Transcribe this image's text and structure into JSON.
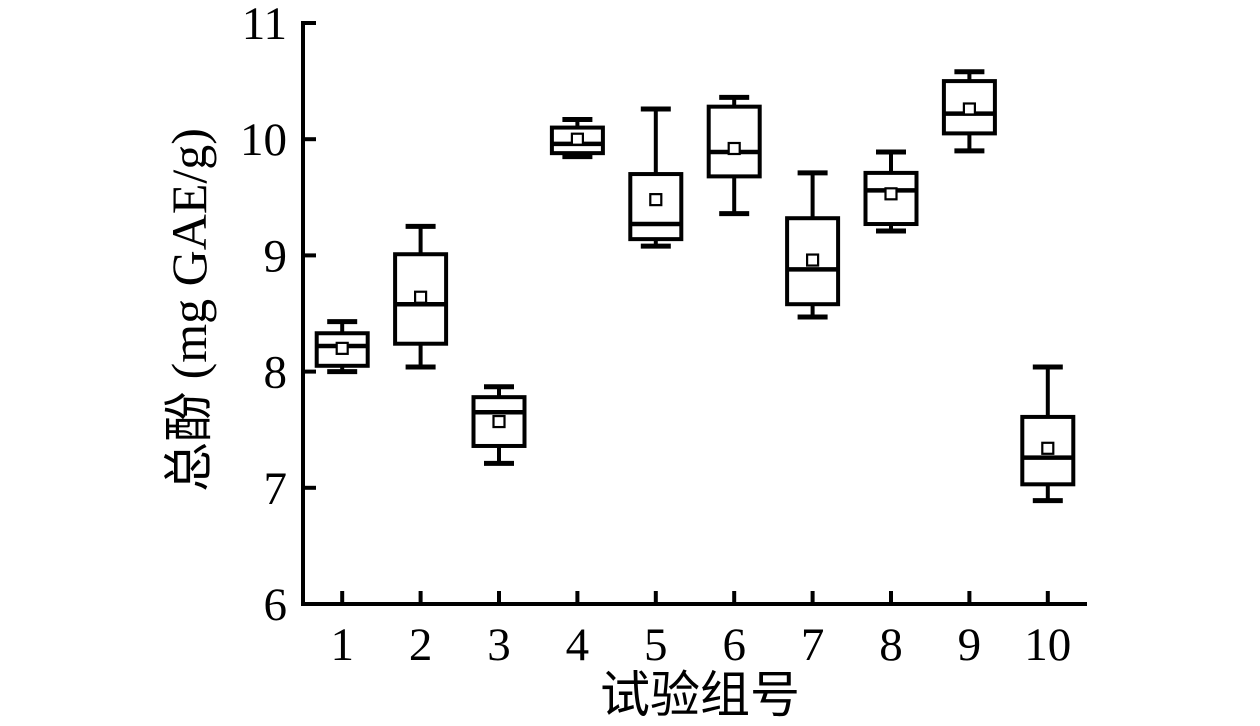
{
  "figure": {
    "background": "#ffffff",
    "ink_color": "#000000"
  },
  "chart_data": {
    "type": "boxplot",
    "title": "",
    "xlabel": "试验组号",
    "ylabel": "总酚 (mg GAE/g)",
    "categories": [
      "1",
      "2",
      "3",
      "4",
      "5",
      "6",
      "7",
      "8",
      "9",
      "10"
    ],
    "ylim": [
      6,
      11
    ],
    "yticks": [
      6,
      7,
      8,
      9,
      10,
      11
    ],
    "grid": false,
    "legend": "none",
    "mean_marker": "open-square",
    "boxes": [
      {
        "group": "1",
        "whisker_low": 8.0,
        "q1": 8.05,
        "median": 8.22,
        "mean": 8.2,
        "q3": 8.33,
        "whisker_high": 8.43
      },
      {
        "group": "2",
        "whisker_low": 8.04,
        "q1": 8.24,
        "median": 8.58,
        "mean": 8.64,
        "q3": 9.01,
        "whisker_high": 9.25
      },
      {
        "group": "3",
        "whisker_low": 7.21,
        "q1": 7.36,
        "median": 7.65,
        "mean": 7.57,
        "q3": 7.78,
        "whisker_high": 7.87
      },
      {
        "group": "4",
        "whisker_low": 9.85,
        "q1": 9.88,
        "median": 9.96,
        "mean": 10.0,
        "q3": 10.1,
        "whisker_high": 10.17
      },
      {
        "group": "5",
        "whisker_low": 9.08,
        "q1": 9.14,
        "median": 9.27,
        "mean": 9.48,
        "q3": 9.7,
        "whisker_high": 10.26
      },
      {
        "group": "6",
        "whisker_low": 9.36,
        "q1": 9.68,
        "median": 9.89,
        "mean": 9.92,
        "q3": 10.28,
        "whisker_high": 10.36
      },
      {
        "group": "7",
        "whisker_low": 8.47,
        "q1": 8.58,
        "median": 8.88,
        "mean": 8.96,
        "q3": 9.32,
        "whisker_high": 9.71
      },
      {
        "group": "8",
        "whisker_low": 9.21,
        "q1": 9.27,
        "median": 9.56,
        "mean": 9.53,
        "q3": 9.71,
        "whisker_high": 9.89
      },
      {
        "group": "9",
        "whisker_low": 9.9,
        "q1": 10.05,
        "median": 10.22,
        "mean": 10.26,
        "q3": 10.5,
        "whisker_high": 10.58
      },
      {
        "group": "10",
        "whisker_low": 6.89,
        "q1": 7.03,
        "median": 7.26,
        "mean": 7.34,
        "q3": 7.61,
        "whisker_high": 8.04
      }
    ]
  }
}
